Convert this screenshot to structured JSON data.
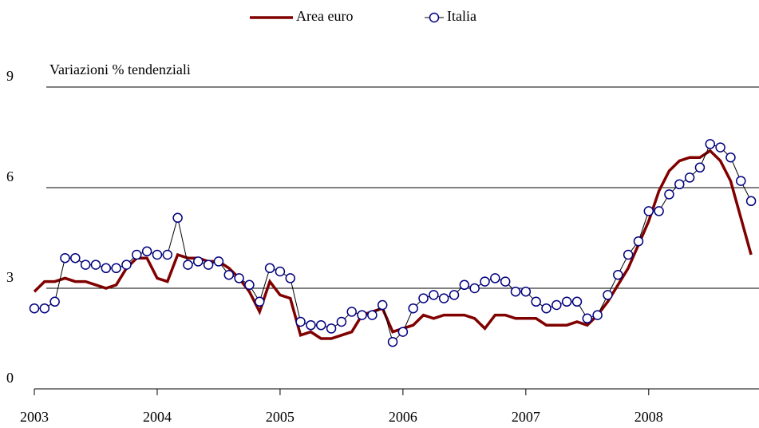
{
  "chart_data": {
    "type": "line",
    "y_label": "Variazioni % tendenziali",
    "categories": [
      "2003",
      null,
      null,
      null,
      null,
      null,
      null,
      null,
      null,
      null,
      null,
      null,
      "2004",
      null,
      null,
      null,
      null,
      null,
      null,
      null,
      null,
      null,
      null,
      null,
      "2005",
      null,
      null,
      null,
      null,
      null,
      null,
      null,
      null,
      null,
      null,
      null,
      "2006",
      null,
      null,
      null,
      null,
      null,
      null,
      null,
      null,
      null,
      null,
      null,
      "2007",
      null,
      null,
      null,
      null,
      null,
      null,
      null,
      null,
      null,
      null,
      null,
      "2008",
      null,
      null,
      null,
      null,
      null,
      null,
      null,
      null,
      null,
      null
    ],
    "series": [
      {
        "name": "Area euro",
        "color": "#800000",
        "marker": false,
        "values": [
          2.9,
          3.2,
          3.2,
          3.3,
          3.2,
          3.2,
          3.1,
          3.0,
          3.1,
          3.6,
          3.9,
          3.9,
          3.3,
          3.2,
          4.0,
          3.9,
          3.9,
          3.8,
          3.8,
          3.6,
          3.3,
          2.9,
          2.3,
          3.2,
          2.8,
          2.7,
          1.6,
          1.7,
          1.5,
          1.5,
          1.6,
          1.7,
          2.2,
          2.3,
          2.4,
          1.7,
          1.8,
          1.9,
          2.2,
          2.1,
          2.2,
          2.2,
          2.2,
          2.1,
          1.8,
          2.2,
          2.2,
          2.1,
          2.1,
          2.1,
          1.9,
          1.9,
          1.9,
          2.0,
          1.9,
          2.2,
          2.6,
          3.1,
          3.6,
          4.3,
          5.0,
          5.9,
          6.5,
          6.8,
          6.9,
          6.9,
          7.1,
          6.8,
          6.2,
          5.1,
          4.0
        ]
      },
      {
        "name": "Italia",
        "color": "#000080",
        "marker": true,
        "values": [
          2.4,
          2.4,
          2.6,
          3.9,
          3.9,
          3.7,
          3.7,
          3.6,
          3.6,
          3.7,
          4.0,
          4.1,
          4.0,
          4.0,
          5.1,
          3.7,
          3.8,
          3.7,
          3.8,
          3.4,
          3.3,
          3.1,
          2.6,
          3.6,
          3.5,
          3.3,
          2.0,
          1.9,
          1.9,
          1.8,
          2.0,
          2.3,
          2.2,
          2.2,
          2.5,
          1.4,
          1.7,
          2.4,
          2.7,
          2.8,
          2.7,
          2.8,
          3.1,
          3.0,
          3.2,
          3.3,
          3.2,
          2.9,
          2.9,
          2.6,
          2.4,
          2.5,
          2.6,
          2.6,
          2.1,
          2.2,
          2.8,
          3.4,
          4.0,
          4.4,
          5.3,
          5.3,
          5.8,
          6.1,
          6.3,
          6.6,
          7.3,
          7.2,
          6.9,
          6.2,
          5.6
        ]
      }
    ],
    "ylim": [
      0,
      9
    ],
    "yticks": [
      0,
      3,
      6,
      9
    ],
    "grid": true
  }
}
